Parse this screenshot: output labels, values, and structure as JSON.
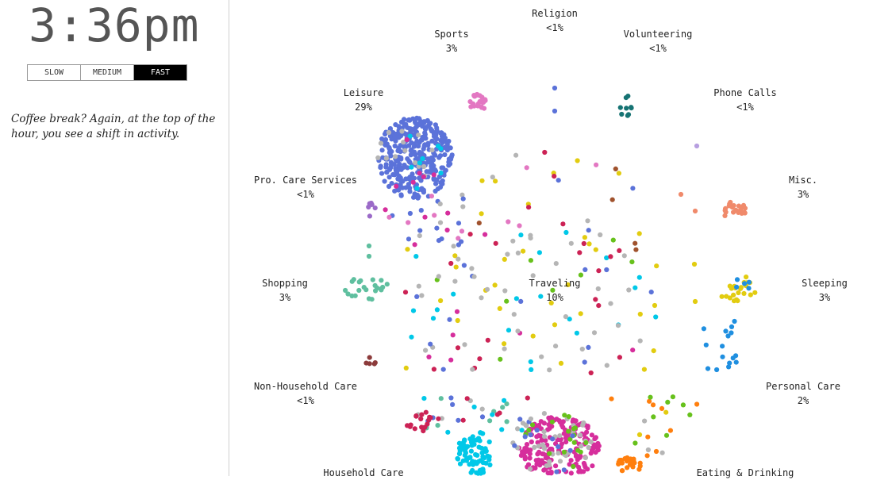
{
  "clock": {
    "time": "3:36pm"
  },
  "speed": {
    "options": [
      "SLOW",
      "MEDIUM",
      "FAST"
    ],
    "selected": "FAST"
  },
  "caption": "Coffee break? Again, at the top of the hour, you see a shift in activity.",
  "colors": {
    "leisure": "#5b72d9",
    "sports": "#e377c2",
    "volunteering": "#167373",
    "phone": "#b79fe0",
    "misc": "#f08a6b",
    "sleeping": "#e2cc10",
    "personal": "#1f8fe0",
    "eating": "#ff7f0e",
    "eatingGreen": "#67c11c",
    "household": "#00c8e8",
    "workPink": "#d62e9c",
    "gray": "#b5b5b5",
    "shopping": "#5fbf9f",
    "nonhousehold": "#8c3b3b",
    "crimson": "#cc2255",
    "brown": "#a0522d",
    "procare": "#9b6ac8"
  },
  "chart_data": {
    "type": "scatter",
    "activities": [
      {
        "name": "Religion",
        "pct": "<1%"
      },
      {
        "name": "Sports",
        "pct": "3%"
      },
      {
        "name": "Volunteering",
        "pct": "<1%"
      },
      {
        "name": "Leisure",
        "pct": "29%"
      },
      {
        "name": "Phone Calls",
        "pct": "<1%"
      },
      {
        "name": "Pro. Care Services",
        "pct": "<1%"
      },
      {
        "name": "Misc.",
        "pct": "3%"
      },
      {
        "name": "Shopping",
        "pct": "3%"
      },
      {
        "name": "Traveling",
        "pct": "10%"
      },
      {
        "name": "Sleeping",
        "pct": "3%"
      },
      {
        "name": "Non-Household Care",
        "pct": "<1%"
      },
      {
        "name": "Personal Care",
        "pct": "2%"
      },
      {
        "name": "Household Care",
        "pct": ""
      },
      {
        "name": "Eating & Drinking",
        "pct": ""
      }
    ]
  }
}
